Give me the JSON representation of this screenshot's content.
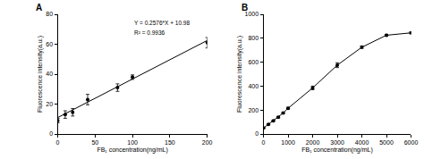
{
  "chart_data": [
    {
      "type": "scatter",
      "title": "A",
      "x_label": "FB₁ concentration(ng/mL)",
      "y_label": "Fluorescence intensity(a.u.)",
      "xlim": [
        0,
        200
      ],
      "xticks": [
        0,
        50,
        100,
        150,
        200
      ],
      "ylim": [
        0,
        80
      ],
      "yticks": [
        0,
        20,
        40,
        60,
        80
      ],
      "grid": false,
      "annotations": [
        "Y = 0.2576*X + 10.98",
        "R² = 0.9936"
      ],
      "series": [
        {
          "type": "scatter",
          "x": [
            0,
            10,
            20,
            40,
            80,
            100,
            200
          ],
          "values": [
            9,
            13,
            14.5,
            23,
            31,
            38,
            61
          ],
          "error": [
            1.5,
            2.5,
            2.5,
            3.5,
            2.5,
            1.5,
            3.5
          ],
          "color": "#000000",
          "marker": "circle"
        },
        {
          "type": "line",
          "x": [
            0,
            200
          ],
          "values": [
            10.98,
            62.5
          ],
          "color": "#000000",
          "line_style": "solid"
        }
      ]
    },
    {
      "type": "line",
      "title": "B",
      "x_label": "FB₁ concentration(ng/mL)",
      "y_label": "Fluorescence intensity(a.u.)",
      "xlim": [
        0,
        6000
      ],
      "xticks": [
        0,
        1000,
        2000,
        3000,
        4000,
        5000,
        6000
      ],
      "ylim": [
        0,
        1000
      ],
      "yticks": [
        0,
        200,
        400,
        600,
        800,
        1000
      ],
      "grid": false,
      "series": [
        {
          "type": "line",
          "x": [
            0,
            200,
            400,
            600,
            800,
            1000,
            2000,
            3000,
            4000,
            5000,
            6000
          ],
          "values": [
            50,
            80,
            110,
            140,
            175,
            215,
            385,
            575,
            725,
            825,
            845
          ],
          "error": [
            4,
            5,
            5,
            6,
            6,
            8,
            15,
            20,
            10,
            8,
            8
          ],
          "color": "#000000",
          "marker": "circle",
          "line_style": "solid"
        }
      ]
    }
  ]
}
